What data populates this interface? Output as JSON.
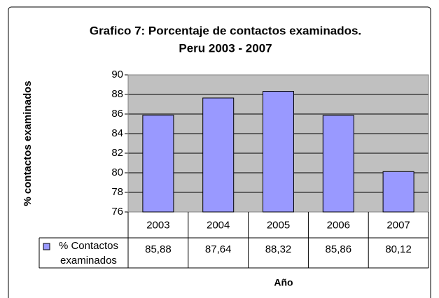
{
  "chart_data": {
    "type": "bar",
    "title": "Grafico 7: Porcentaje de contactos examinados.",
    "subtitle": "Peru 2003 - 2007",
    "x_label": "Año",
    "y_label": "% contactos examinados",
    "categories": [
      "2003",
      "2004",
      "2005",
      "2006",
      "2007"
    ],
    "series": [
      {
        "name": "% Contactos examinados",
        "color": "#9999ff",
        "values": [
          85.88,
          87.64,
          88.32,
          85.86,
          80.12
        ],
        "value_labels": [
          "85,88",
          "87,64",
          "88,32",
          "85,86",
          "80,12"
        ]
      }
    ],
    "ylim": [
      76,
      90
    ],
    "yticks": [
      76,
      78,
      80,
      82,
      84,
      86,
      88,
      90
    ],
    "grid": true,
    "plot_background": "#c0c0c0"
  }
}
